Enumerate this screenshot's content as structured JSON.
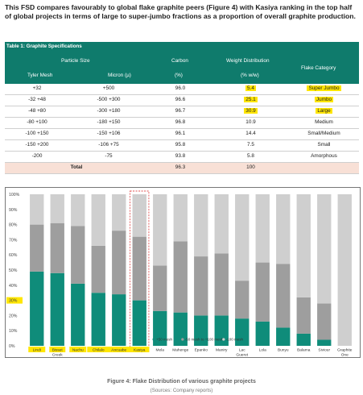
{
  "intro": "This FSD compares favourably to global flake graphite peers (Figure 4) with Kasiya ranking in the top half of global projects in terms of large to super-jumbo fractions as a proportion of overall graphite production.",
  "table": {
    "title": "Table 1: Graphite Specifications",
    "headers": {
      "particle_size": "Particle Size",
      "tyler_mesh": "Tyler Mesh",
      "micron": "Micron (µ)",
      "carbon": "Carbon",
      "carbon_unit": "(%)",
      "weight": "Weight Distribution",
      "weight_unit": "(% w/w)",
      "category": "Flake Category"
    },
    "rows": [
      {
        "mesh": "+32",
        "micron": "+500",
        "carbon": "96.0",
        "weight": "5.4",
        "category": "Super Jumbo",
        "highlight": true
      },
      {
        "mesh": "-32 +48",
        "micron": "-500 +300",
        "carbon": "96.6",
        "weight": "25.1",
        "category": "Jumbo",
        "highlight": true
      },
      {
        "mesh": "-48 +80",
        "micron": "-300 +180",
        "carbon": "96.7",
        "weight": "30.9",
        "category": "Large",
        "highlight": true
      },
      {
        "mesh": "-80 +100",
        "micron": "-180 +150",
        "carbon": "96.8",
        "weight": "10.9",
        "category": "Medium",
        "highlight": false
      },
      {
        "mesh": "-100 +150",
        "micron": "-150 +106",
        "carbon": "96.1",
        "weight": "14.4",
        "category": "Small/Medium",
        "highlight": false
      },
      {
        "mesh": "-150 +200",
        "micron": "-106 +75",
        "carbon": "95.8",
        "weight": "7.5",
        "category": "Small",
        "highlight": false
      },
      {
        "mesh": "-200",
        "micron": "-75",
        "carbon": "93.8",
        "weight": "5.8",
        "category": "Amorphous",
        "highlight": false
      }
    ],
    "total": {
      "label": "Total",
      "carbon": "96.3",
      "weight": "100"
    }
  },
  "chart_data": {
    "type": "bar",
    "stacked": true,
    "categories": [
      "Lindi",
      "Bisset Creek",
      "Nachu",
      "Chilalo",
      "Ancuabe",
      "Kasiya",
      "Mela",
      "Mahenge",
      "Epanko",
      "Maniry",
      "Lac Gueret",
      "Lola",
      "Bunyu",
      "Balama",
      "Siviour",
      "Graphite One"
    ],
    "series": [
      {
        "name": "+50 mesh",
        "color": "#0f8c7a",
        "values": [
          49,
          48,
          41,
          35,
          34,
          30,
          23,
          22,
          20,
          20,
          18,
          16,
          12,
          8,
          4,
          0
        ]
      },
      {
        "name": "-50 mesh to +100 mesh",
        "color": "#9e9e9e",
        "values": [
          31,
          33,
          38,
          31,
          42,
          42,
          30,
          47,
          39,
          41,
          25,
          39,
          42,
          24,
          24,
          0
        ]
      },
      {
        "name": "-100 mesh",
        "color": "#cfcfcf",
        "values": [
          20,
          19,
          21,
          34,
          24,
          28,
          47,
          31,
          41,
          39,
          57,
          45,
          46,
          68,
          72,
          100
        ]
      }
    ],
    "ylim": [
      0,
      100
    ],
    "yticks": [
      "0%",
      "10%",
      "20%",
      "30%",
      "40%",
      "50%",
      "60%",
      "70%",
      "80%",
      "90%",
      "100%"
    ],
    "highlight_category": "Kasiya",
    "highlight_tick": "30%",
    "highlighted_labels": [
      "Lindi",
      "Bisset Creek",
      "Nachu",
      "Chilalo",
      "Ancuabe",
      "Kasiya"
    ]
  },
  "caption": "Figure 4: Flake Distribution of various graphite projects",
  "source": "(Sources: Company reports)",
  "colors": {
    "teal": "#0f7b6c",
    "highlight": "#ffe600",
    "total_bg": "#f8e0d6"
  }
}
